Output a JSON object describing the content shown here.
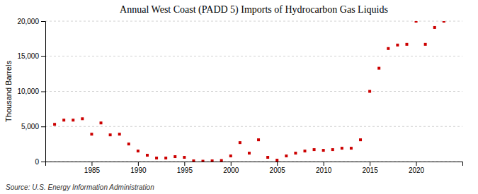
{
  "chart_data": {
    "type": "scatter",
    "title": "Annual West Coast (PADD 5) Imports of Hydrocarbon Gas Liquids",
    "ylabel": "Thousand Barrels",
    "source": "Source: U.S. Energy Information Administration",
    "x": [
      1981,
      1982,
      1983,
      1984,
      1985,
      1986,
      1987,
      1988,
      1989,
      1990,
      1991,
      1992,
      1993,
      1994,
      1995,
      1996,
      1997,
      1998,
      1999,
      2000,
      2001,
      2002,
      2003,
      2004,
      2005,
      2006,
      2007,
      2008,
      2009,
      2010,
      2011,
      2012,
      2013,
      2014,
      2015,
      2016,
      2017,
      2018,
      2019,
      2020,
      2021,
      2022,
      2023
    ],
    "values": [
      5300,
      5900,
      5900,
      6100,
      3900,
      5500,
      3800,
      3900,
      2500,
      1500,
      900,
      500,
      500,
      700,
      600,
      100,
      50,
      100,
      150,
      800,
      2700,
      1200,
      3100,
      600,
      200,
      800,
      1200,
      1500,
      1700,
      1600,
      1700,
      1900,
      1900,
      3100,
      10000,
      13300,
      16100,
      16600,
      16700,
      20000,
      16700,
      19100,
      20000
    ],
    "color": "#cc0000",
    "marker": "square",
    "xlim": [
      1980,
      2025
    ],
    "xticks": [
      1985,
      1990,
      1995,
      2000,
      2005,
      2010,
      2015,
      2020
    ],
    "ylim": [
      0,
      20000
    ],
    "yticks": [
      0,
      {
        "value": 5000,
        "label": "5,000"
      },
      {
        "value": 10000,
        "label": "10,000"
      },
      {
        "value": 15000,
        "label": "15,000"
      },
      {
        "value": 20000,
        "label": "20,000"
      }
    ],
    "grid": true
  }
}
